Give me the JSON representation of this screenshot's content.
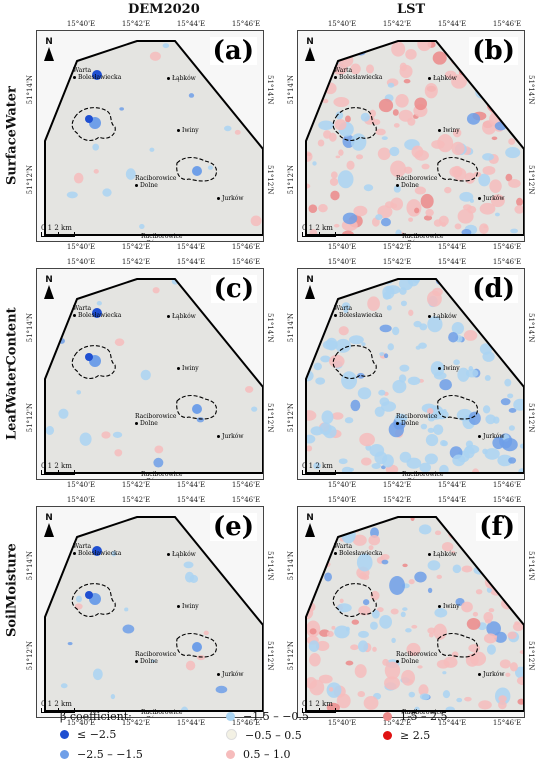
{
  "columns": [
    "DEM2020",
    "LST"
  ],
  "rows": [
    "SurfaceWater",
    "LeafWaterContent",
    "SoilMoisture"
  ],
  "panels": [
    {
      "letter": "(a)"
    },
    {
      "letter": "(b)"
    },
    {
      "letter": "(c)"
    },
    {
      "letter": "(d)"
    },
    {
      "letter": "(e)"
    },
    {
      "letter": "(f)"
    }
  ],
  "map": {
    "north": "N",
    "lon_labels": [
      "15°40'E",
      "15°42'E",
      "15°44'E",
      "15°46'E"
    ],
    "lat_labels": [
      "51°14'N",
      "51°12'N"
    ],
    "scale": {
      "ticks": "0   1    2 km"
    },
    "towns": [
      {
        "name": "Warta\nBolesławiecka"
      },
      {
        "name": "Łąbków"
      },
      {
        "name": "Iwiny"
      },
      {
        "name": "Raciborowice\nDolne"
      },
      {
        "name": "Jurków"
      },
      {
        "name": "Raciborowice\nGórne"
      }
    ]
  },
  "legend": {
    "title": "β coefficient:",
    "items": [
      {
        "label": "≤ −2.5",
        "color": "#1f4fd1"
      },
      {
        "label": "−2.5 – −1.5",
        "color": "#6f9fe8"
      },
      {
        "label": "−1.5 – −0.5",
        "color": "#aad4f2"
      },
      {
        "label": "−0.5 – 0.5",
        "color": "#f3f1e4"
      },
      {
        "label": "0.5 – 1.0",
        "color": "#f6bcbc"
      },
      {
        "label": "1.5 – 2.5",
        "color": "#ec8a8a"
      },
      {
        "label": "≥ 2.5",
        "color": "#e01212"
      }
    ]
  },
  "colors": {
    "background": "#f7f7f7",
    "study_area_fill": "#e4e4e1",
    "boundary": "#000000"
  }
}
